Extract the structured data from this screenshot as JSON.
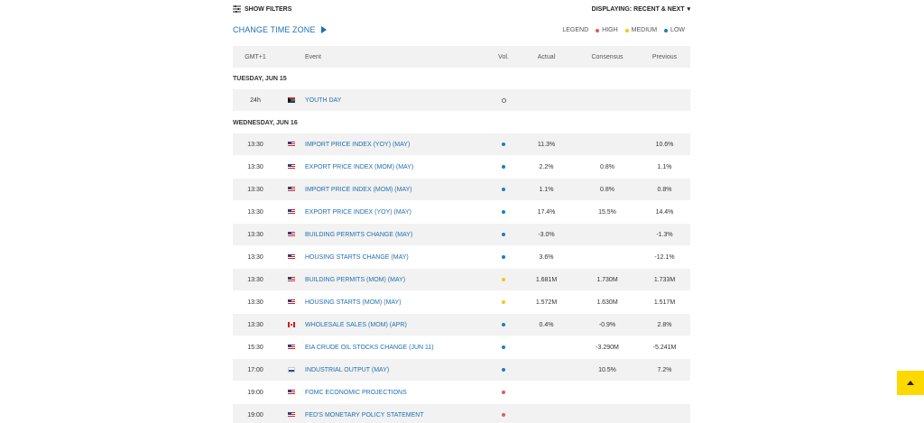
{
  "filters": {
    "show_filters_label": "SHOW FILTERS",
    "displaying_label": "DISPLAYING: RECENT & NEXT"
  },
  "timezone": {
    "change_label": "CHANGE TIME ZONE"
  },
  "legend": {
    "title": "LEGEND",
    "high": "HIGH",
    "medium": "MEDIUM",
    "low": "LOW"
  },
  "colors": {
    "accent": "#1f6fb0",
    "high": "#e05a5a",
    "medium": "#f5c518",
    "low": "#1f7cc4",
    "scroll_button": "#ffd800"
  },
  "columns": {
    "time": "GMT+1",
    "event": "Event",
    "vol": "Vol.",
    "actual": "Actual",
    "consensus": "Consensus",
    "previous": "Previous"
  },
  "days": [
    {
      "label": "TUESDAY, JUN 15",
      "rows": [
        {
          "time": "24h",
          "flag": "za",
          "event": "YOUTH DAY",
          "vol": "none",
          "actual": "",
          "consensus": "",
          "previous": ""
        }
      ]
    },
    {
      "label": "WEDNESDAY, JUN 16",
      "rows": [
        {
          "time": "13:30",
          "flag": "us",
          "event": "IMPORT PRICE INDEX (YOY) (MAY)",
          "vol": "low",
          "actual": "11.3%",
          "consensus": "",
          "previous": "10.6%"
        },
        {
          "time": "13:30",
          "flag": "us",
          "event": "EXPORT PRICE INDEX (MOM) (MAY)",
          "vol": "low",
          "actual": "2.2%",
          "consensus": "0.8%",
          "previous": "1.1%"
        },
        {
          "time": "13:30",
          "flag": "us",
          "event": "IMPORT PRICE INDEX (MOM) (MAY)",
          "vol": "low",
          "actual": "1.1%",
          "consensus": "0.8%",
          "previous": "0.8%"
        },
        {
          "time": "13:30",
          "flag": "us",
          "event": "EXPORT PRICE INDEX (YOY) (MAY)",
          "vol": "low",
          "actual": "17.4%",
          "consensus": "15.5%",
          "previous": "14.4%"
        },
        {
          "time": "13:30",
          "flag": "us",
          "event": "BUILDING PERMITS CHANGE (MAY)",
          "vol": "low",
          "actual": "-3.0%",
          "consensus": "",
          "previous": "-1.3%"
        },
        {
          "time": "13:30",
          "flag": "us",
          "event": "HOUSING STARTS CHANGE (MAY)",
          "vol": "low",
          "actual": "3.6%",
          "consensus": "",
          "previous": "-12.1%"
        },
        {
          "time": "13:30",
          "flag": "us",
          "event": "BUILDING PERMITS (MOM) (MAY)",
          "vol": "medium",
          "actual": "1.681M",
          "consensus": "1.730M",
          "previous": "1.733M"
        },
        {
          "time": "13:30",
          "flag": "us",
          "event": "HOUSING STARTS (MOM) (MAY)",
          "vol": "medium",
          "actual": "1.572M",
          "consensus": "1.630M",
          "previous": "1.517M"
        },
        {
          "time": "13:30",
          "flag": "ca",
          "event": "WHOLESALE SALES (MOM) (APR)",
          "vol": "low",
          "actual": "0.4%",
          "consensus": "-0.9%",
          "previous": "2.8%"
        },
        {
          "time": "15:30",
          "flag": "us",
          "event": "EIA CRUDE OIL STOCKS CHANGE (JUN 11)",
          "vol": "low",
          "actual": "",
          "consensus": "-3.290M",
          "previous": "-5.241M"
        },
        {
          "time": "17:00",
          "flag": "ru",
          "event": "INDUSTRIAL OUTPUT (MAY)",
          "vol": "low",
          "actual": "",
          "consensus": "10.5%",
          "previous": "7.2%"
        },
        {
          "time": "19:00",
          "flag": "us",
          "event": "FOMC ECONOMIC PROJECTIONS",
          "vol": "high",
          "actual": "",
          "consensus": "",
          "previous": ""
        },
        {
          "time": "19:00",
          "flag": "us",
          "event": "FED'S MONETARY POLICY STATEMENT",
          "vol": "high",
          "actual": "",
          "consensus": "",
          "previous": ""
        }
      ]
    }
  ]
}
